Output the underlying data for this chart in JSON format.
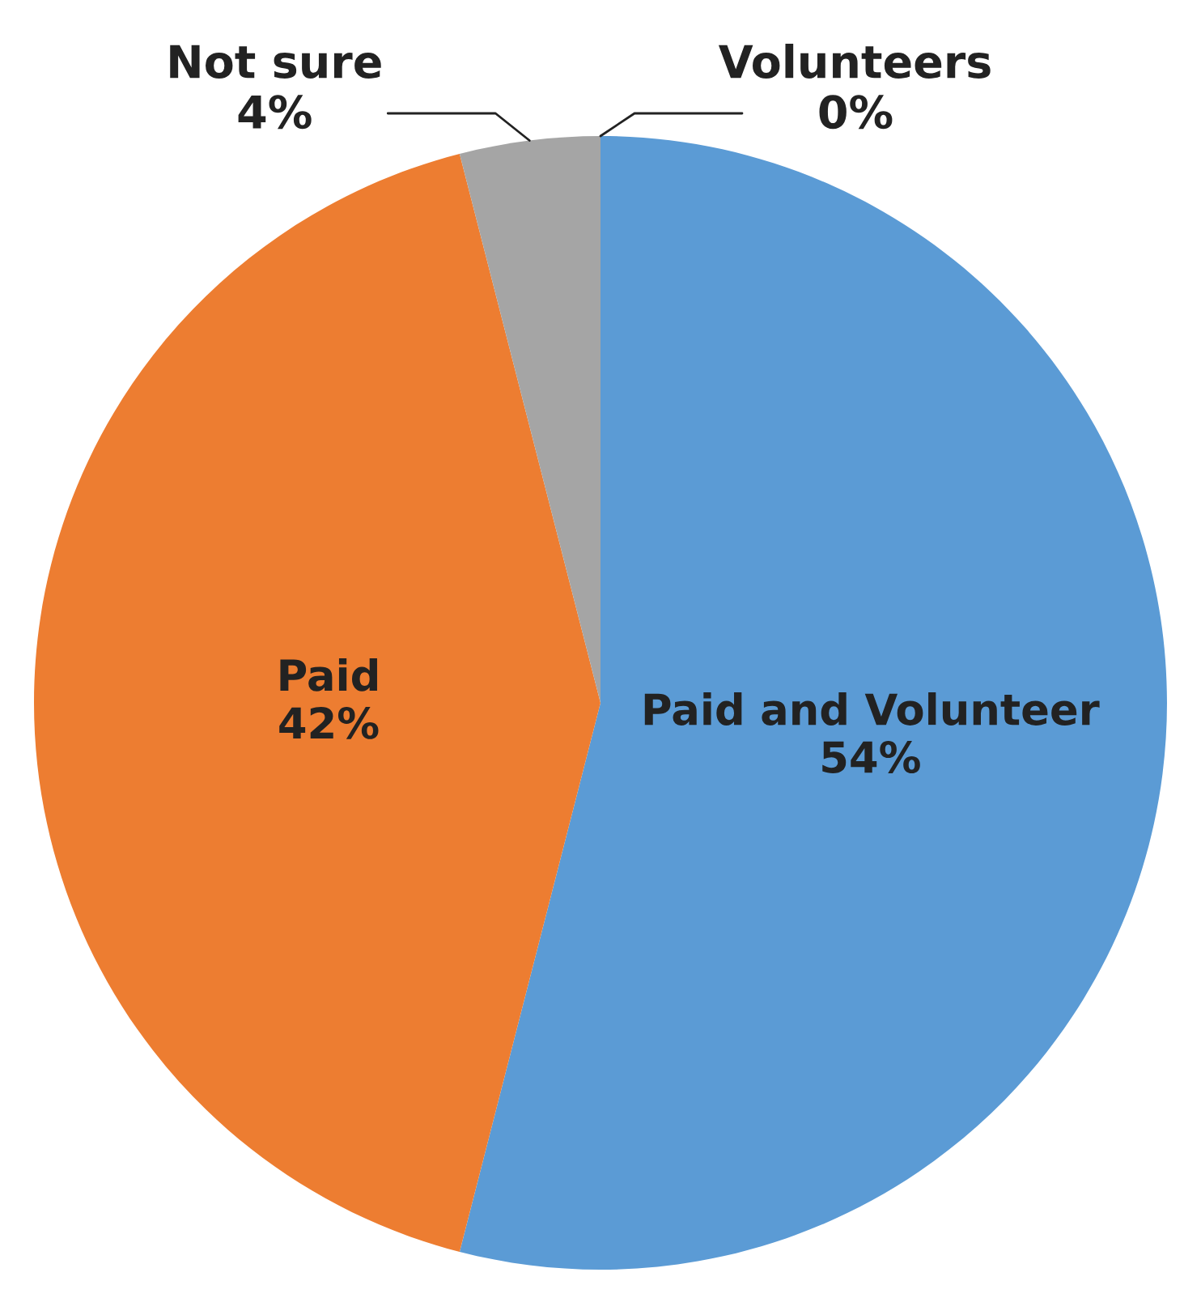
{
  "chart_data": {
    "type": "pie",
    "categories": [
      "Paid and Volunteer",
      "Paid",
      "Not sure",
      "Volunteers"
    ],
    "values": [
      54,
      42,
      4,
      0
    ],
    "value_labels": [
      "54%",
      "42%",
      "4%",
      "0%"
    ],
    "colors": [
      "#5b9bd5",
      "#ed7d31",
      "#a5a5a5",
      "#ffc000"
    ],
    "legend": false
  }
}
